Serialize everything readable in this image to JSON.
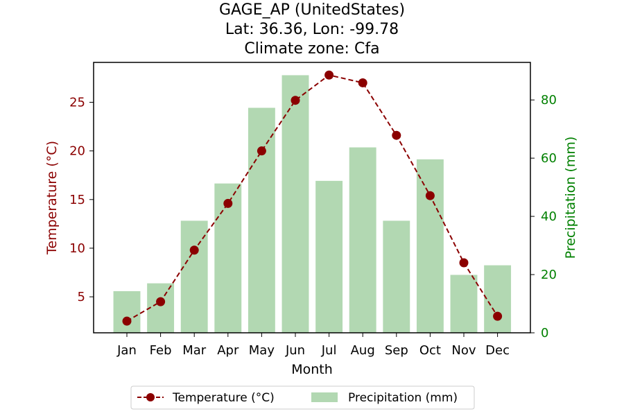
{
  "chart_data": {
    "type": "bar+line",
    "title_lines": [
      "GAGE_AP (UnitedStates)",
      "Lat: 36.36, Lon: -99.78",
      "Climate zone: Cfa"
    ],
    "xlabel": "Month",
    "ylabel_left": "Temperature (°C)",
    "ylabel_right": "Precipitation (mm)",
    "categories": [
      "Jan",
      "Feb",
      "Mar",
      "Apr",
      "May",
      "Jun",
      "Jul",
      "Aug",
      "Sep",
      "Oct",
      "Nov",
      "Dec"
    ],
    "temperature": [
      2.5,
      4.5,
      9.8,
      14.6,
      20.0,
      25.2,
      27.8,
      27.0,
      21.6,
      15.4,
      8.5,
      3.0
    ],
    "precipitation": [
      14.3,
      17.0,
      38.5,
      51.3,
      77.3,
      88.5,
      52.2,
      63.7,
      38.5,
      59.6,
      19.9,
      23.2
    ],
    "ylim_left": [
      1.3,
      29.1
    ],
    "ylim_right": [
      0,
      92.9
    ],
    "yticks_left": [
      5,
      10,
      15,
      20,
      25
    ],
    "yticks_right": [
      0,
      20,
      40,
      60,
      80
    ],
    "legend": {
      "placement": "bottom-center",
      "entries": [
        "Temperature (°C)",
        "Precipitation (mm)"
      ]
    },
    "colors": {
      "temperature": "#8b0000",
      "precipitation": "#b2d8b2",
      "left_axis": "#8b0000",
      "right_axis": "#008000"
    },
    "grid": false
  }
}
